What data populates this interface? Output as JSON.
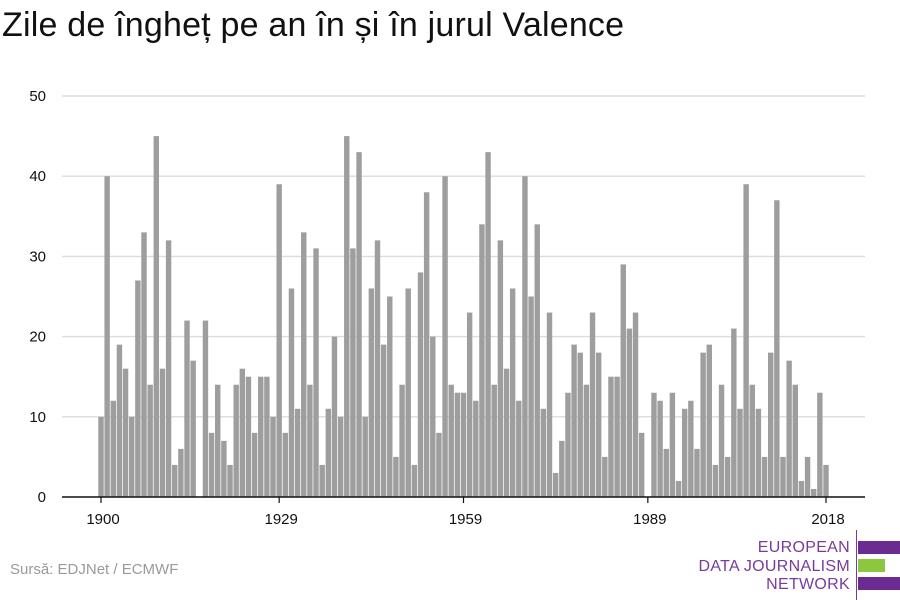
{
  "title": "Zile de îngheț pe an în și în jurul Valence",
  "source": "Sursă: EDJNet / ECMWF",
  "logo": {
    "lines": [
      "EUROPEAN",
      "DATA JOURNALISM",
      "NETWORK"
    ],
    "colors": {
      "purple": "#6a2c91",
      "green": "#8dc63f"
    }
  },
  "colors": {
    "bar": "#9e9e9e",
    "grid": "#dcdcdc",
    "axis": "#111111"
  },
  "chart_data": {
    "type": "bar",
    "title": "Zile de îngheț pe an în și în jurul Valence",
    "xlabel": "",
    "ylabel": "",
    "ylim": [
      0,
      50
    ],
    "yticks": [
      0,
      10,
      20,
      30,
      40,
      50
    ],
    "xticks": [
      1900,
      1929,
      1959,
      1989,
      2018
    ],
    "grid": true,
    "categories": [
      1900,
      1901,
      1902,
      1903,
      1904,
      1905,
      1906,
      1907,
      1908,
      1909,
      1910,
      1911,
      1912,
      1913,
      1914,
      1915,
      1916,
      1917,
      1918,
      1919,
      1920,
      1921,
      1922,
      1923,
      1924,
      1925,
      1926,
      1927,
      1928,
      1929,
      1930,
      1931,
      1932,
      1933,
      1934,
      1935,
      1936,
      1937,
      1938,
      1939,
      1940,
      1941,
      1942,
      1943,
      1944,
      1945,
      1946,
      1947,
      1948,
      1949,
      1950,
      1951,
      1952,
      1953,
      1954,
      1955,
      1956,
      1957,
      1958,
      1959,
      1960,
      1961,
      1962,
      1963,
      1964,
      1965,
      1966,
      1967,
      1968,
      1969,
      1970,
      1971,
      1972,
      1973,
      1974,
      1975,
      1976,
      1977,
      1978,
      1979,
      1980,
      1981,
      1982,
      1983,
      1984,
      1985,
      1986,
      1987,
      1988,
      1989,
      1990,
      1991,
      1992,
      1993,
      1994,
      1995,
      1996,
      1997,
      1998,
      1999,
      2000,
      2001,
      2002,
      2003,
      2004,
      2005,
      2006,
      2007,
      2008,
      2009,
      2010,
      2011,
      2012,
      2013,
      2014,
      2015,
      2016,
      2017,
      2018
    ],
    "values": [
      10,
      40,
      12,
      19,
      16,
      10,
      27,
      33,
      14,
      45,
      16,
      32,
      4,
      6,
      22,
      17,
      0,
      22,
      8,
      14,
      7,
      4,
      14,
      16,
      15,
      8,
      15,
      15,
      10,
      39,
      8,
      26,
      11,
      33,
      14,
      31,
      4,
      11,
      20,
      10,
      45,
      31,
      43,
      10,
      26,
      32,
      19,
      25,
      5,
      14,
      26,
      4,
      28,
      38,
      20,
      8,
      40,
      14,
      13,
      13,
      23,
      12,
      34,
      43,
      14,
      32,
      16,
      26,
      12,
      40,
      25,
      34,
      11,
      23,
      3,
      7,
      13,
      19,
      18,
      14,
      23,
      18,
      5,
      15,
      15,
      29,
      21,
      23,
      8,
      0,
      13,
      12,
      6,
      13,
      2,
      11,
      12,
      6,
      18,
      19,
      4,
      14,
      5,
      21,
      11,
      39,
      14,
      11,
      5,
      18,
      37,
      5,
      17,
      14,
      2,
      5,
      1,
      13,
      4
    ]
  }
}
